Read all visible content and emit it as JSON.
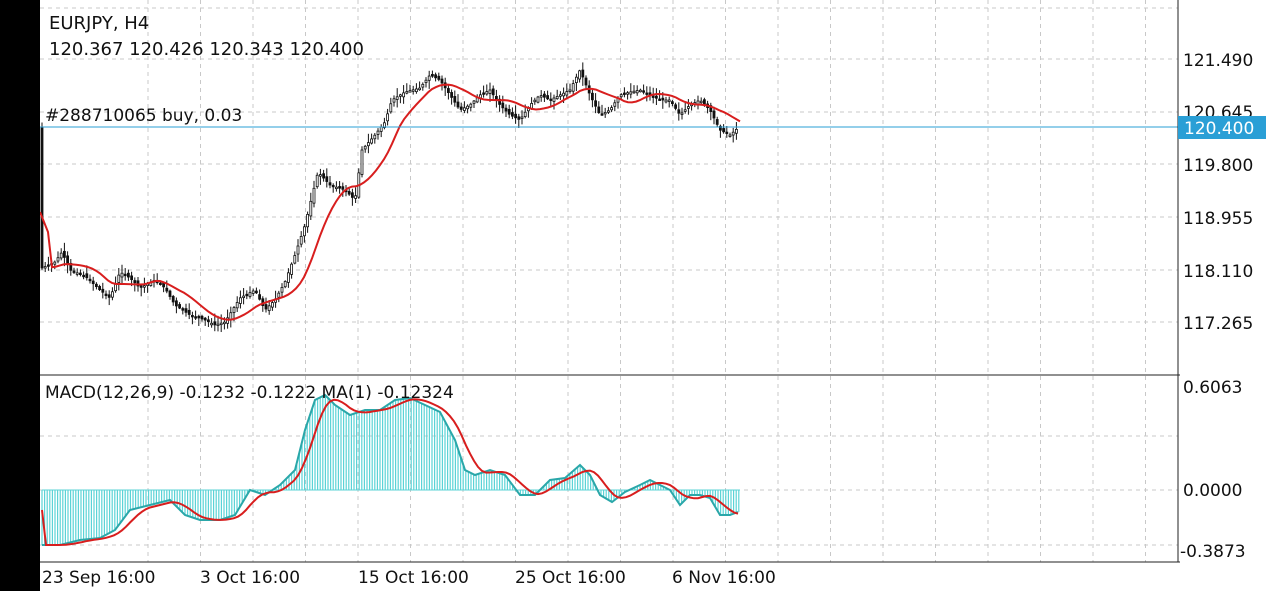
{
  "header": {
    "symbol_timeframe": "EURJPY, H4",
    "ohlc": "120.367 120.426 120.343 120.400",
    "order_label": "#288710065 buy, 0.03"
  },
  "price_axis": {
    "ticks": [
      "121.490",
      "120.645",
      "119.800",
      "118.955",
      "118.110",
      "117.265"
    ],
    "current_price": "120.400",
    "current_price_color": "#2a9fd6"
  },
  "indicator": {
    "label": "MACD(12,26,9) -0.1232 -0.1222 MA(1) -0.12324",
    "ticks": [
      "0.6063",
      "0.0000",
      "-0.3873"
    ],
    "macd_color": "#2aa7a9",
    "histogram_color": "#5bd3d6",
    "signal_color": "#d81e1e"
  },
  "time_axis": {
    "ticks": [
      "23 Sep 16:00",
      "3 Oct 16:00",
      "15 Oct 16:00",
      "25 Oct 16:00",
      "6 Nov 16:00"
    ]
  },
  "colors": {
    "ma_line": "#d81e1e",
    "candles": "#111111",
    "grid": "#c8c8c8"
  }
}
